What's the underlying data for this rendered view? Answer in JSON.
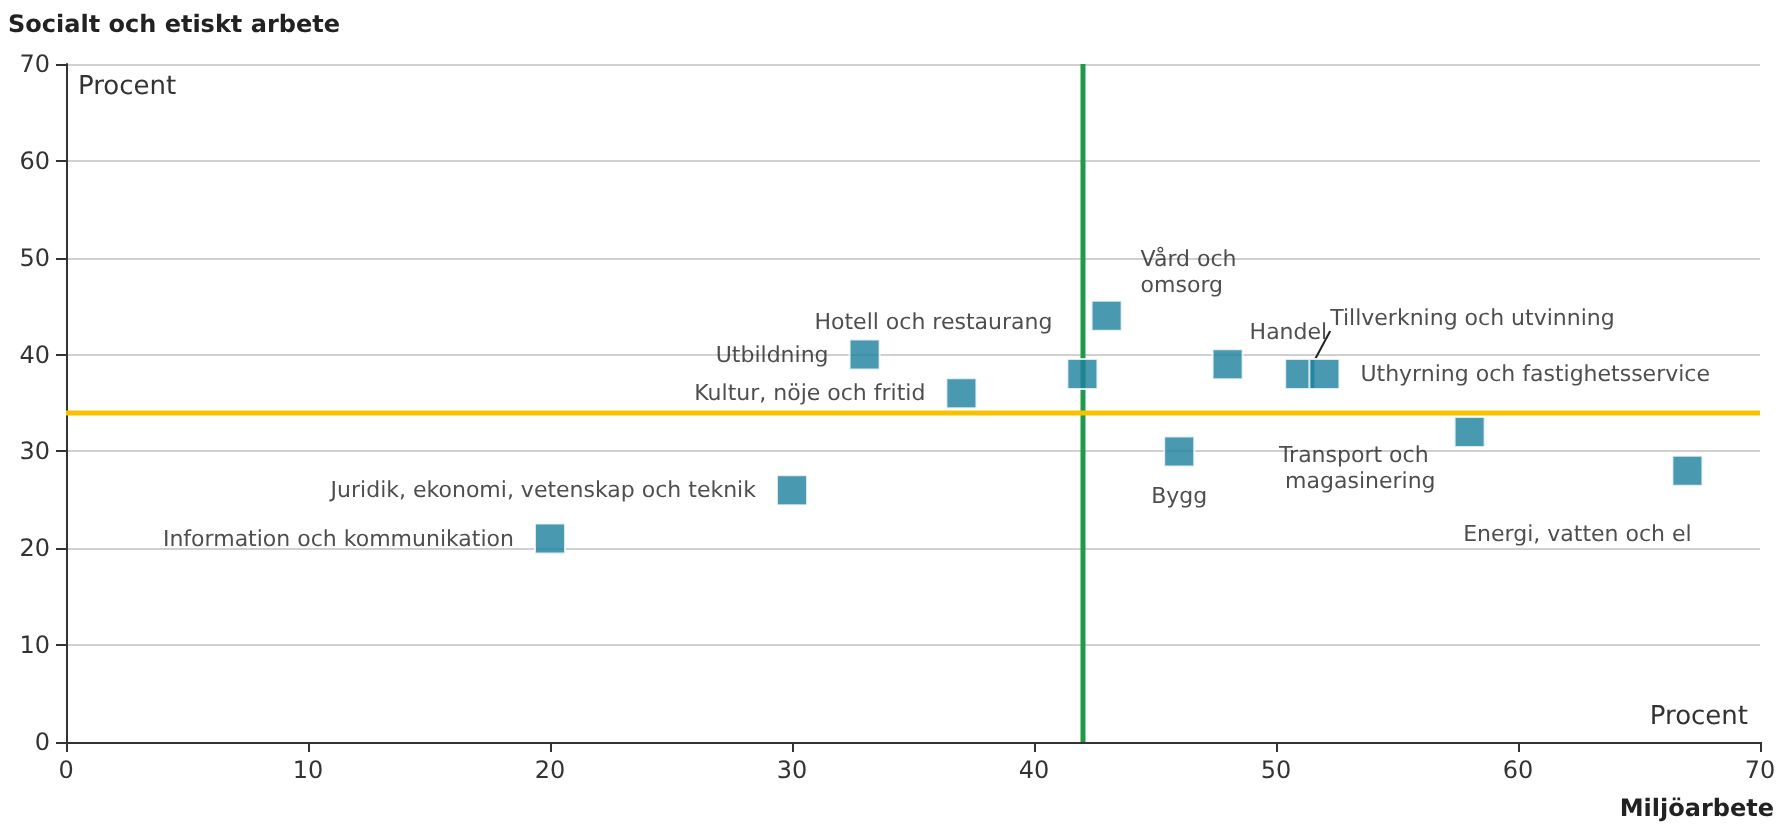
{
  "chart_data": {
    "type": "scatter",
    "ylabel": "Socialt och etiskt arbete",
    "xlabel": "Miljöarbete",
    "annotations": [
      "Procent",
      "Procent",
      {
        "text": "Information och kommunikation",
        "x": 20,
        "y": 21
      },
      {
        "text": "Juridik, ekonomi, vetenskap och teknik",
        "x": 30,
        "y": 26
      },
      {
        "text": "Utbildning",
        "x": 33,
        "y": 40
      },
      {
        "text": "Kultur, nöje och fritid",
        "x": 37,
        "y": 36
      },
      {
        "text": "Hotell och restaurang",
        "x": 42,
        "y": 38
      },
      {
        "text": "Vård och omsorg",
        "x": 43,
        "y": 44
      },
      {
        "text": "Bygg",
        "x": 46,
        "y": 30
      },
      {
        "text": "Handel",
        "x": 48,
        "y": 39
      },
      {
        "text": "Tillverkning och utvinning",
        "x": 51,
        "y": 38
      },
      {
        "text": "Uthyrning och fastighetsservice",
        "x": 52,
        "y": 38
      },
      {
        "text": "Transport och magasinering",
        "x": 58,
        "y": 32
      },
      {
        "text": "Energi, vatten och el",
        "x": 67,
        "y": 28
      }
    ],
    "x": [
      20,
      30,
      33,
      37,
      42,
      43,
      46,
      48,
      51,
      52,
      58,
      67
    ],
    "values": [
      21,
      26,
      40,
      36,
      38,
      44,
      30,
      39,
      38,
      38,
      32,
      28
    ],
    "color": "#1b7f9e",
    "marker": "square",
    "xlim": [
      0,
      70
    ],
    "xticks": [
      0,
      10,
      20,
      30,
      40,
      50,
      60,
      70
    ],
    "ylim": [
      0,
      70
    ],
    "yticks": [
      0,
      10,
      20,
      30,
      40,
      50,
      60,
      70
    ],
    "grid": "y",
    "ref_lines": [
      {
        "axis": "x",
        "value": 42,
        "color": "#1e9a4a"
      },
      {
        "axis": "y",
        "value": 34,
        "color": "#f5c200"
      }
    ]
  }
}
